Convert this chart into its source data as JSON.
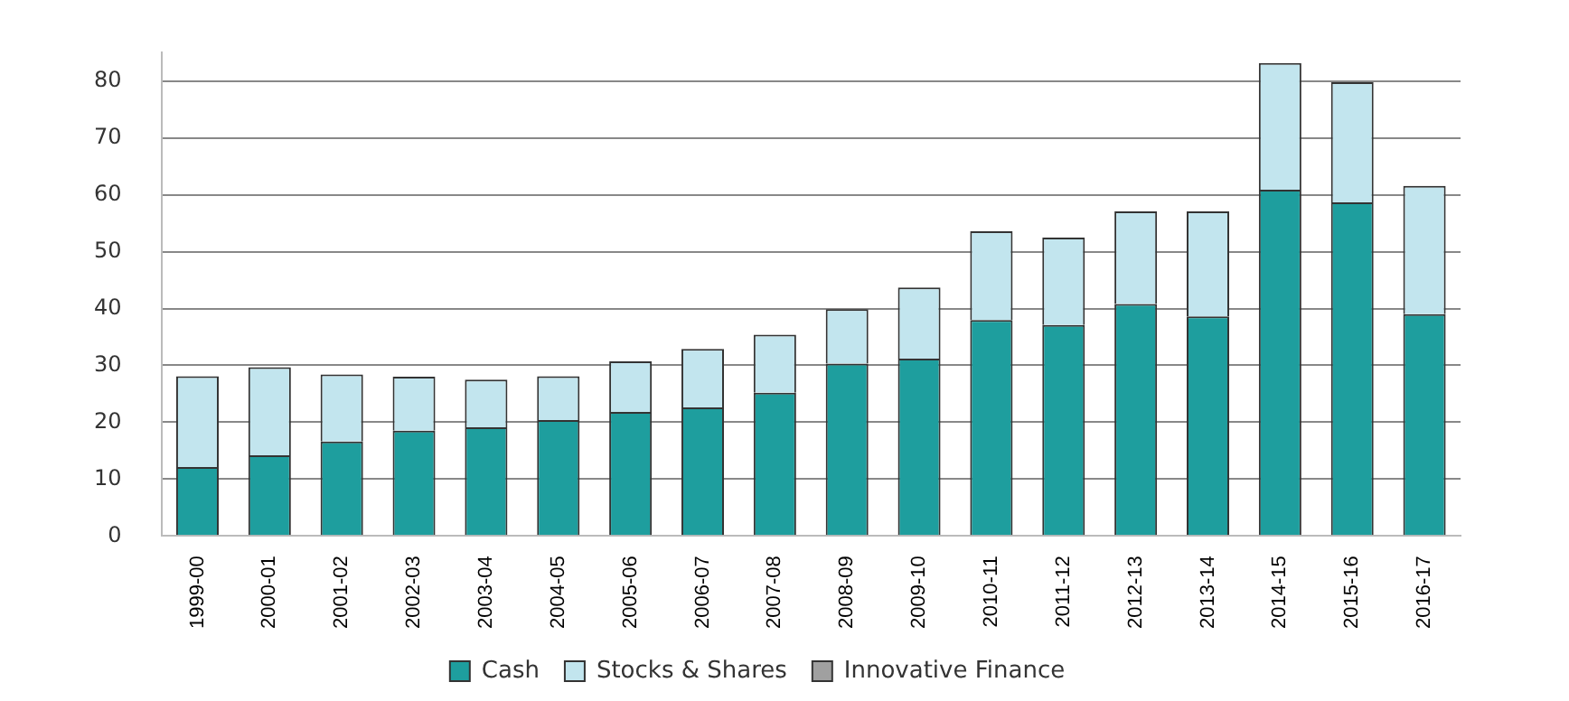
{
  "chart_data": {
    "type": "bar",
    "stacked": true,
    "categories": [
      "1999-00",
      "2000-01",
      "2001-02",
      "2002-03",
      "2003-04",
      "2004-05",
      "2005-06",
      "2006-07",
      "2007-08",
      "2008-09",
      "2009-10",
      "2010-11",
      "2011-12",
      "2012-13",
      "2013-14",
      "2014-15",
      "2015-16",
      "2016-17"
    ],
    "series": [
      {
        "name": "Cash",
        "color": "#1e9e9e",
        "values": [
          12.1,
          14.2,
          16.6,
          18.5,
          19.1,
          20.4,
          21.8,
          22.6,
          25.2,
          30.3,
          31.2,
          38.0,
          37.1,
          40.8,
          38.6,
          60.9,
          58.7,
          39.0
        ]
      },
      {
        "name": "Stocks & Shares",
        "color": "#c2e5ee",
        "values": [
          16.0,
          15.5,
          11.8,
          9.5,
          8.4,
          7.7,
          8.9,
          10.3,
          10.2,
          9.6,
          12.5,
          15.6,
          15.4,
          16.3,
          18.5,
          22.3,
          21.1,
          22.6
        ]
      },
      {
        "name": "Innovative Finance",
        "color": "#a0a0a0",
        "values": [
          null,
          null,
          null,
          null,
          null,
          null,
          null,
          null,
          null,
          null,
          null,
          null,
          null,
          null,
          null,
          null,
          null,
          0
        ]
      }
    ],
    "ylim": [
      0,
      85
    ],
    "yticks": [
      0,
      10,
      20,
      30,
      40,
      50,
      60,
      70,
      80
    ],
    "grid": "y",
    "legend": "bottom"
  }
}
